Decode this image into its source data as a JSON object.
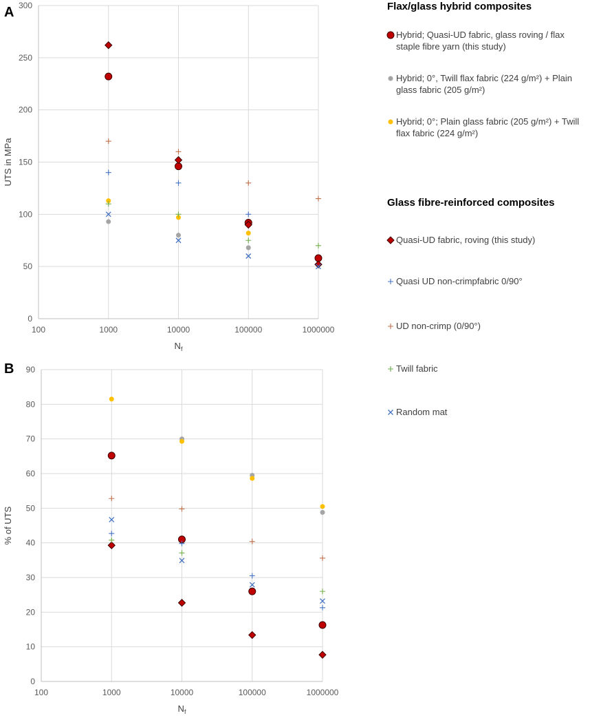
{
  "legend": {
    "hybrid_heading": "Flax/glass hybrid composites",
    "glass_heading": "Glass fibre-reinforced composites",
    "entries": [
      {
        "key": "hyb_study",
        "lines": [
          "Hybrid; Quasi-UD fabric, glass roving / flax",
          "staple fibre yarn (this study)"
        ]
      },
      {
        "key": "hyb_twill",
        "lines": [
          "Hybrid; 0°, Twill flax fabric (224 g/m²) + Plain",
          "glass fabric (205 g/m²)"
        ]
      },
      {
        "key": "hyb_plain",
        "lines": [
          "Hybrid; 0°; Plain glass fabric (205 g/m²) +  Twill",
          "flax fabric (224 g/m²)"
        ]
      },
      {
        "key": "gf_study",
        "lines": [
          "Quasi-UD fabric, roving (this study)"
        ]
      },
      {
        "key": "gf_quasi",
        "lines": [
          "Quasi UD non-crimpfabric 0/90°"
        ]
      },
      {
        "key": "gf_ud",
        "lines": [
          "UD non-crimp (0/90°)"
        ]
      },
      {
        "key": "gf_twill",
        "lines": [
          "Twill fabric"
        ]
      },
      {
        "key": "gf_random",
        "lines": [
          "Random mat"
        ]
      }
    ]
  },
  "series_styles": {
    "hyb_study": {
      "marker": "circle-large",
      "color": "#c00000",
      "stroke": "#3a0000"
    },
    "hyb_twill": {
      "marker": "circle-small",
      "color": "#a5a5a5",
      "stroke": "#a5a5a5"
    },
    "hyb_plain": {
      "marker": "circle-small",
      "color": "#ffc000",
      "stroke": "#ffc000"
    },
    "gf_study": {
      "marker": "diamond",
      "color": "#c00000",
      "stroke": "#3a0000"
    },
    "gf_quasi": {
      "marker": "plus",
      "color": "#4472c4",
      "stroke": "#4472c4"
    },
    "gf_ud": {
      "marker": "plus",
      "color": "#c0704a",
      "stroke": "#c0704a"
    },
    "gf_twill": {
      "marker": "plus",
      "color": "#70ad47",
      "stroke": "#70ad47"
    },
    "gf_random": {
      "marker": "cross",
      "color": "#4472c4",
      "stroke": "#4472c4"
    }
  },
  "chart_data": [
    {
      "panel": "A",
      "type": "scatter",
      "xscale": "log",
      "xlabel": "N",
      "xlabel_sub": "f",
      "ylabel": "UTS in MPa",
      "xlim": [
        100,
        1000000
      ],
      "ylim": [
        0,
        300
      ],
      "xticks": [
        100,
        1000,
        10000,
        100000,
        1000000
      ],
      "xtick_labels": [
        "100",
        "1000",
        "10000",
        "100000",
        "1000000"
      ],
      "yticks": [
        0,
        50,
        100,
        150,
        200,
        250,
        300
      ],
      "grid": true,
      "series": [
        {
          "key": "hyb_study",
          "x": [
            1000,
            10000,
            100000,
            1000000
          ],
          "y": [
            232,
            146,
            92,
            58
          ]
        },
        {
          "key": "hyb_twill",
          "x": [
            1000,
            10000,
            100000
          ],
          "y": [
            93,
            80,
            68
          ]
        },
        {
          "key": "hyb_plain",
          "x": [
            1000,
            10000,
            100000
          ],
          "y": [
            113,
            97,
            82
          ]
        },
        {
          "key": "gf_study",
          "x": [
            1000,
            10000,
            100000,
            1000000
          ],
          "y": [
            262,
            152,
            90,
            52
          ]
        },
        {
          "key": "gf_quasi",
          "x": [
            1000,
            10000,
            100000
          ],
          "y": [
            140,
            130,
            100
          ]
        },
        {
          "key": "gf_ud",
          "x": [
            1000,
            10000,
            100000,
            1000000
          ],
          "y": [
            170,
            160,
            130,
            115
          ]
        },
        {
          "key": "gf_twill",
          "x": [
            1000,
            10000,
            100000,
            1000000
          ],
          "y": [
            110,
            100,
            75,
            70
          ]
        },
        {
          "key": "gf_random",
          "x": [
            1000,
            10000,
            100000,
            1000000
          ],
          "y": [
            100,
            75,
            60,
            50
          ]
        }
      ]
    },
    {
      "panel": "B",
      "type": "scatter",
      "xscale": "log",
      "xlabel": "N",
      "xlabel_sub": "f",
      "ylabel": "% of UTS",
      "xlim": [
        100,
        1000000
      ],
      "ylim": [
        0,
        90
      ],
      "xticks": [
        100,
        1000,
        10000,
        100000,
        1000000
      ],
      "xtick_labels": [
        "100",
        "1000",
        "10000",
        "100000",
        "1000000"
      ],
      "yticks": [
        0,
        10,
        20,
        30,
        40,
        50,
        60,
        70,
        80,
        90
      ],
      "grid": true,
      "series": [
        {
          "key": "hyb_study",
          "x": [
            1000,
            10000,
            100000,
            1000000
          ],
          "y": [
            65.2,
            41,
            26,
            16.3
          ]
        },
        {
          "key": "hyb_twill",
          "x": [
            10000,
            100000,
            1000000
          ],
          "y": [
            70,
            59.5,
            48.8
          ]
        },
        {
          "key": "hyb_plain",
          "x": [
            1000,
            10000,
            100000,
            1000000
          ],
          "y": [
            81.5,
            69.3,
            58.6,
            50.5
          ]
        },
        {
          "key": "gf_study",
          "x": [
            1000,
            10000,
            100000,
            1000000
          ],
          "y": [
            39.3,
            22.7,
            13.4,
            7.7
          ]
        },
        {
          "key": "gf_quasi",
          "x": [
            1000,
            10000,
            100000,
            1000000
          ],
          "y": [
            42.7,
            39.8,
            30.5,
            21.3
          ]
        },
        {
          "key": "gf_ud",
          "x": [
            1000,
            10000,
            100000,
            1000000
          ],
          "y": [
            52.8,
            49.8,
            40.4,
            35.6
          ]
        },
        {
          "key": "gf_twill",
          "x": [
            1000,
            10000,
            1000000
          ],
          "y": [
            40.8,
            37.1,
            26
          ]
        },
        {
          "key": "gf_random",
          "x": [
            1000,
            10000,
            100000,
            1000000
          ],
          "y": [
            46.7,
            34.9,
            27.9,
            23.2
          ]
        }
      ]
    }
  ]
}
